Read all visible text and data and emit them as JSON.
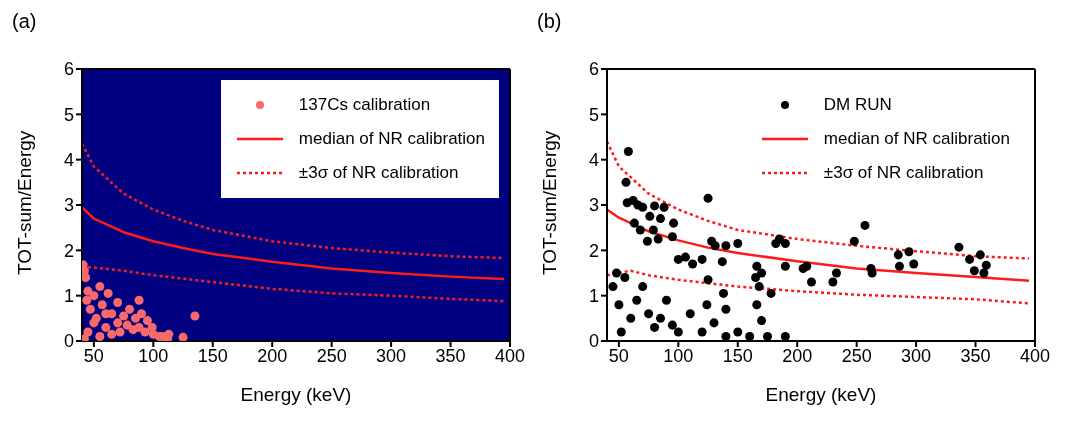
{
  "chart_data": [
    {
      "type": "scatter",
      "title": "(a)",
      "xlabel": "Energy (keV)",
      "ylabel": "TOT-sum/Energy",
      "xlim": [
        40,
        400
      ],
      "ylim": [
        0,
        6
      ],
      "xticks": [
        50,
        100,
        150,
        200,
        250,
        300,
        350,
        400
      ],
      "yticks": [
        0,
        1,
        2,
        3,
        4,
        5,
        6
      ],
      "legend": "top right",
      "grid": false,
      "series": [
        {
          "type": "scatter",
          "name": "137Cs calibration",
          "color": "#f86a6a",
          "marker": "circle",
          "x": [
            41,
            42,
            43,
            45,
            44,
            47,
            50,
            52,
            55,
            57,
            60,
            62,
            65,
            88,
            70,
            72,
            75,
            78,
            80,
            83,
            85,
            88,
            90,
            93,
            95,
            99,
            100,
            105,
            108,
            112,
            113,
            125,
            135,
            55,
            45,
            60,
            50,
            65,
            70,
            42
          ],
          "values": [
            1.68,
            1.55,
            1.4,
            1.1,
            0.9,
            0.7,
            1.0,
            0.5,
            1.2,
            0.8,
            0.3,
            1.05,
            0.6,
            0.9,
            0.4,
            0.2,
            0.55,
            0.35,
            0.7,
            0.25,
            0.5,
            0.3,
            0.6,
            0.2,
            0.45,
            0.3,
            0.15,
            0.1,
            0.1,
            0.05,
            0.15,
            0.08,
            0.55,
            0.1,
            0.2,
            0.6,
            0.4,
            0.15,
            0.85,
            0.05
          ]
        },
        {
          "type": "line",
          "name": "median of NR calibration",
          "color": "#ff1a1a",
          "line_style": "solid",
          "x": [
            40,
            50,
            75,
            100,
            125,
            150,
            200,
            250,
            300,
            350,
            395
          ],
          "values": [
            2.95,
            2.7,
            2.4,
            2.2,
            2.05,
            1.92,
            1.75,
            1.6,
            1.5,
            1.42,
            1.37
          ]
        },
        {
          "type": "line",
          "name": "±3σ of NR calibration",
          "color": "#ff1a1a",
          "line_style": "dotted",
          "x": [
            40,
            50,
            75,
            100,
            125,
            150,
            200,
            250,
            300,
            350,
            395
          ],
          "values": [
            4.35,
            3.85,
            3.25,
            2.9,
            2.65,
            2.45,
            2.2,
            2.05,
            1.95,
            1.87,
            1.83
          ]
        },
        {
          "type": "line",
          "color": "#ff1a1a",
          "line_style": "dotted",
          "x": [
            40,
            50,
            75,
            100,
            150,
            200,
            250,
            300,
            350,
            395
          ],
          "values": [
            1.63,
            1.62,
            1.55,
            1.45,
            1.3,
            1.15,
            1.05,
            1.0,
            0.93,
            0.88
          ]
        }
      ]
    },
    {
      "type": "scatter",
      "title": "(b)",
      "xlabel": "Energy (keV)",
      "ylabel": "TOT-sum/Energy",
      "xlim": [
        40,
        400
      ],
      "ylim": [
        0,
        6
      ],
      "xticks": [
        50,
        100,
        150,
        200,
        250,
        300,
        350,
        400
      ],
      "yticks": [
        0,
        1,
        2,
        3,
        4,
        5,
        6
      ],
      "legend": "top right",
      "grid": false,
      "series": [
        {
          "type": "scatter",
          "name": "DM RUN",
          "color": "#000000",
          "marker": "circle",
          "x": [
            58,
            56,
            57,
            62,
            66,
            70,
            76,
            80,
            85,
            88,
            96,
            125,
            63,
            68,
            74,
            79,
            83,
            95,
            100,
            106,
            112,
            120,
            128,
            131,
            137,
            140,
            150,
            166,
            170,
            165,
            168,
            178,
            185,
            182,
            190,
            190,
            205,
            208,
            212,
            230,
            233,
            248,
            257,
            262,
            263,
            285,
            286,
            294,
            298,
            336,
            345,
            349,
            354,
            359,
            357,
            138,
            125,
            124,
            166,
            170,
            190,
            175,
            160,
            150,
            140,
            55,
            70,
            90,
            110,
            130,
            60,
            80,
            100,
            50,
            52,
            65,
            75,
            85,
            95,
            120,
            140,
            48,
            45
          ],
          "values": [
            4.18,
            3.5,
            3.05,
            3.1,
            3.0,
            2.95,
            2.75,
            2.98,
            2.7,
            2.95,
            2.6,
            3.15,
            2.6,
            2.45,
            2.2,
            2.45,
            2.25,
            2.3,
            1.8,
            1.85,
            1.7,
            1.8,
            2.2,
            2.1,
            1.75,
            2.1,
            2.15,
            1.65,
            1.5,
            1.4,
            1.2,
            1.05,
            2.25,
            2.15,
            2.15,
            1.65,
            1.6,
            1.65,
            1.3,
            1.3,
            1.5,
            2.2,
            2.55,
            1.6,
            1.5,
            1.9,
            1.65,
            1.97,
            1.7,
            2.07,
            1.8,
            1.55,
            1.9,
            1.67,
            1.5,
            1.05,
            1.35,
            0.8,
            0.8,
            0.45,
            0.1,
            0.1,
            0.1,
            0.2,
            0.7,
            1.4,
            1.2,
            0.9,
            0.6,
            0.4,
            0.5,
            0.3,
            0.2,
            0.8,
            0.2,
            0.9,
            0.6,
            0.5,
            0.35,
            0.2,
            0.1,
            1.5,
            1.2
          ]
        },
        {
          "type": "line",
          "name": "median of NR calibration",
          "color": "#ff1a1a",
          "line_style": "solid",
          "x": [
            40,
            50,
            75,
            100,
            125,
            150,
            200,
            250,
            300,
            350,
            395
          ],
          "values": [
            2.9,
            2.72,
            2.42,
            2.22,
            2.06,
            1.94,
            1.76,
            1.6,
            1.5,
            1.41,
            1.33
          ]
        },
        {
          "type": "line",
          "name": "±3σ of NR calibration",
          "color": "#ff1a1a",
          "line_style": "dotted",
          "x": [
            40,
            50,
            75,
            100,
            125,
            150,
            200,
            250,
            300,
            350,
            395
          ],
          "values": [
            4.4,
            3.85,
            3.25,
            2.9,
            2.65,
            2.45,
            2.25,
            2.1,
            1.98,
            1.87,
            1.82
          ]
        },
        {
          "type": "line",
          "color": "#ff1a1a",
          "line_style": "dotted",
          "x": [
            40,
            50,
            60,
            75,
            100,
            150,
            200,
            250,
            300,
            350,
            395
          ],
          "values": [
            1.45,
            1.5,
            1.55,
            1.45,
            1.35,
            1.2,
            1.1,
            1.02,
            0.97,
            0.92,
            0.83
          ]
        }
      ]
    }
  ]
}
